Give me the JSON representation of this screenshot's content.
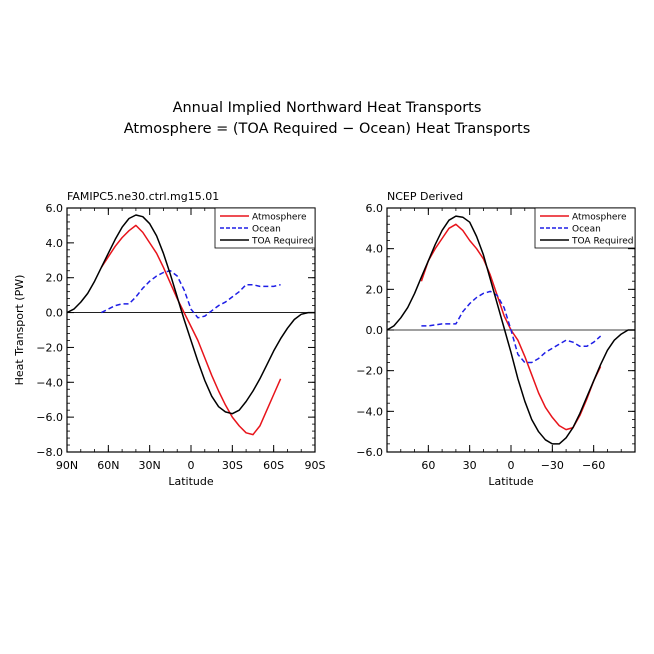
{
  "figure": {
    "title_line1": "Annual Implied Northward Heat Transports",
    "title_line2": "Atmosphere = (TOA Required − Ocean) Heat Transports"
  },
  "chart_data": [
    {
      "type": "line",
      "panel_label": "FAMIPC5.ne30.ctrl.mg15.01",
      "xlabel": "Latitude",
      "ylabel": "Heat Transport (PW)",
      "xlim": [
        90,
        -90
      ],
      "ylim": [
        -8,
        6
      ],
      "x_ticks": [
        90,
        60,
        30,
        0,
        -30,
        -60,
        -90
      ],
      "x_tick_labels": [
        "90N",
        "60N",
        "30N",
        "0",
        "30S",
        "60S",
        "90S"
      ],
      "y_ticks": [
        -8,
        -6,
        -4,
        -2,
        0,
        2,
        4,
        6
      ],
      "y_tick_labels": [
        "−8.0",
        "−6.0",
        "−4.0",
        "−2.0",
        "0.0",
        "2.0",
        "4.0",
        "6.0"
      ],
      "legend_position": "top-right",
      "series": [
        {
          "name": "Atmosphere",
          "color": "#e8141b",
          "dash": "solid",
          "x": [
            65,
            60,
            55,
            50,
            45,
            40,
            35,
            30,
            25,
            20,
            15,
            10,
            5,
            0,
            -5,
            -10,
            -15,
            -20,
            -25,
            -30,
            -35,
            -40,
            -45,
            -50,
            -55,
            -60,
            -65
          ],
          "y": [
            2.6,
            3.2,
            3.8,
            4.3,
            4.7,
            5.0,
            4.6,
            4.0,
            3.4,
            2.6,
            1.7,
            0.8,
            0.0,
            -0.8,
            -1.6,
            -2.6,
            -3.6,
            -4.5,
            -5.3,
            -6.0,
            -6.5,
            -6.9,
            -7.0,
            -6.5,
            -5.6,
            -4.7,
            -3.8
          ]
        },
        {
          "name": "Ocean",
          "color": "#1e1ee6",
          "dash": "dashed",
          "x": [
            65,
            60,
            55,
            50,
            45,
            40,
            35,
            30,
            25,
            20,
            15,
            10,
            5,
            0,
            -5,
            -10,
            -15,
            -20,
            -25,
            -30,
            -35,
            -40,
            -45,
            -50,
            -55,
            -60,
            -65
          ],
          "y": [
            0.0,
            0.2,
            0.4,
            0.5,
            0.5,
            0.9,
            1.4,
            1.8,
            2.1,
            2.3,
            2.4,
            2.1,
            1.3,
            0.2,
            -0.3,
            -0.2,
            0.1,
            0.4,
            0.6,
            0.9,
            1.2,
            1.6,
            1.6,
            1.5,
            1.5,
            1.5,
            1.6
          ]
        },
        {
          "name": "TOA Required",
          "color": "#000000",
          "dash": "solid",
          "x": [
            90,
            85,
            80,
            75,
            70,
            65,
            60,
            55,
            50,
            45,
            40,
            35,
            30,
            25,
            20,
            15,
            10,
            5,
            0,
            -5,
            -10,
            -15,
            -20,
            -25,
            -30,
            -35,
            -40,
            -45,
            -50,
            -55,
            -60,
            -65,
            -70,
            -75,
            -80,
            -85,
            -90
          ],
          "y": [
            0.0,
            0.2,
            0.6,
            1.1,
            1.8,
            2.6,
            3.4,
            4.2,
            4.9,
            5.4,
            5.6,
            5.5,
            5.1,
            4.4,
            3.4,
            2.2,
            0.9,
            -0.4,
            -1.6,
            -2.8,
            -3.9,
            -4.8,
            -5.4,
            -5.7,
            -5.8,
            -5.6,
            -5.1,
            -4.5,
            -3.8,
            -3.0,
            -2.2,
            -1.5,
            -0.9,
            -0.4,
            -0.1,
            0.0,
            0.0
          ]
        }
      ]
    },
    {
      "type": "line",
      "panel_label": "NCEP Derived",
      "xlabel": "Latitude",
      "ylabel": "",
      "xlim": [
        90,
        -90
      ],
      "ylim": [
        -6,
        6
      ],
      "x_ticks": [
        60,
        30,
        0,
        -30,
        -60
      ],
      "x_tick_labels": [
        "60",
        "30",
        "0",
        "−30",
        "−60"
      ],
      "y_ticks": [
        -6,
        -4,
        -2,
        0,
        2,
        4,
        6
      ],
      "y_tick_labels": [
        "−6.0",
        "−4.0",
        "−2.0",
        "0.0",
        "2.0",
        "4.0",
        "6.0"
      ],
      "legend_position": "top-right",
      "series": [
        {
          "name": "Atmosphere",
          "color": "#e8141b",
          "dash": "solid",
          "x": [
            65,
            60,
            55,
            50,
            45,
            40,
            35,
            30,
            25,
            20,
            15,
            10,
            5,
            0,
            -5,
            -10,
            -15,
            -20,
            -25,
            -30,
            -35,
            -40,
            -45,
            -50,
            -55,
            -60,
            -65
          ],
          "y": [
            2.4,
            3.4,
            4.0,
            4.5,
            5.0,
            5.2,
            4.9,
            4.4,
            4.0,
            3.5,
            2.7,
            1.7,
            0.7,
            0.0,
            -0.5,
            -1.3,
            -2.2,
            -3.1,
            -3.8,
            -4.3,
            -4.7,
            -4.9,
            -4.8,
            -4.2,
            -3.4,
            -2.5,
            -1.8
          ]
        },
        {
          "name": "Ocean",
          "color": "#1e1ee6",
          "dash": "dashed",
          "x": [
            65,
            60,
            55,
            50,
            45,
            40,
            35,
            30,
            25,
            20,
            15,
            10,
            5,
            0,
            -5,
            -10,
            -15,
            -20,
            -25,
            -30,
            -35,
            -40,
            -45,
            -50,
            -55,
            -60,
            -65
          ],
          "y": [
            0.2,
            0.2,
            0.25,
            0.3,
            0.3,
            0.3,
            0.9,
            1.3,
            1.6,
            1.8,
            1.9,
            1.7,
            1.1,
            0.0,
            -1.2,
            -1.6,
            -1.6,
            -1.4,
            -1.1,
            -0.9,
            -0.7,
            -0.5,
            -0.6,
            -0.8,
            -0.8,
            -0.6,
            -0.3
          ]
        },
        {
          "name": "TOA Required",
          "color": "#000000",
          "dash": "solid",
          "x": [
            90,
            85,
            80,
            75,
            70,
            65,
            60,
            55,
            50,
            45,
            40,
            35,
            30,
            25,
            20,
            15,
            10,
            5,
            0,
            -5,
            -10,
            -15,
            -20,
            -25,
            -30,
            -35,
            -40,
            -45,
            -50,
            -55,
            -60,
            -65,
            -70,
            -75,
            -80,
            -85,
            -90
          ],
          "y": [
            0.0,
            0.2,
            0.6,
            1.1,
            1.8,
            2.6,
            3.4,
            4.2,
            4.9,
            5.4,
            5.6,
            5.55,
            5.3,
            4.6,
            3.7,
            2.5,
            1.3,
            0.1,
            -1.1,
            -2.4,
            -3.5,
            -4.4,
            -5.0,
            -5.4,
            -5.6,
            -5.6,
            -5.3,
            -4.8,
            -4.1,
            -3.3,
            -2.5,
            -1.7,
            -1.0,
            -0.5,
            -0.2,
            0.0,
            0.0
          ]
        }
      ]
    }
  ]
}
